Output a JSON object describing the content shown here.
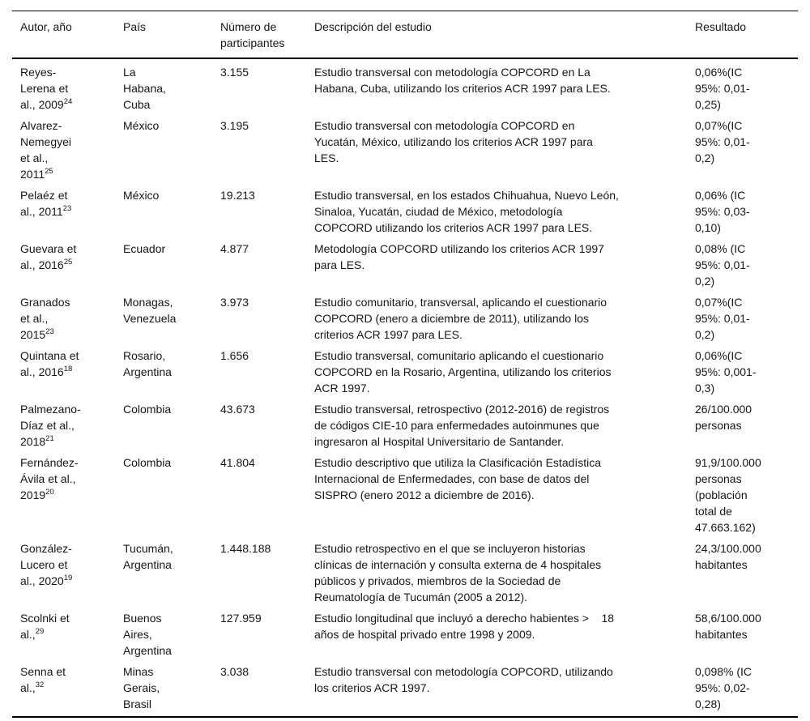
{
  "page": {
    "background_color": "#ffffff",
    "text_color": "#161616",
    "rule_color": "#000000"
  },
  "table": {
    "columns": [
      {
        "label": "Autor, año"
      },
      {
        "label": "País"
      },
      {
        "label": "Número de\nparticipantes"
      },
      {
        "label": "Descripción del estudio"
      },
      {
        "label": "Resultado"
      }
    ],
    "rows": [
      {
        "author": "Reyes-\nLerena et\nal., 2009",
        "author_ref": "24",
        "country": "La\nHabana,\nCuba",
        "participants": "3.155",
        "description": "Estudio transversal con metodología COPCORD en La\nHabana, Cuba, utilizando los criterios ACR 1997 para LES.",
        "result": "0,06%(IC\n95%: 0,01-\n0,25)"
      },
      {
        "author": "Alvarez-\nNemegyei\net al.,\n2011",
        "author_ref": "25",
        "country": "México",
        "participants": "3.195",
        "description": "Estudio transversal con metodología COPCORD en\nYucatán, México, utilizando los criterios ACR 1997 para\nLES.",
        "result": "0,07%(IC\n95%: 0,01-\n0,2)"
      },
      {
        "author": "Pelaéz et\nal., 2011",
        "author_ref": "23",
        "country": "México",
        "participants": "19.213",
        "description": "Estudio transversal, en los estados Chihuahua, Nuevo León,\nSinaloa, Yucatán, ciudad de México, metodología\nCOPCORD utilizando los criterios ACR 1997 para LES.",
        "result": "0,06% (IC\n95%: 0,03-\n0,10)"
      },
      {
        "author": "Guevara et\nal., 2016",
        "author_ref": "25",
        "country": "Ecuador",
        "participants": "4.877",
        "description": "Metodología COPCORD utilizando los criterios ACR 1997\npara LES.",
        "result": "0,08% (IC\n95%: 0,01-\n0,2)"
      },
      {
        "author": "Granados\net al.,\n2015",
        "author_ref": "23",
        "country": "Monagas,\nVenezuela",
        "participants": "3.973",
        "description": "Estudio comunitario, transversal, aplicando el cuestionario\nCOPCORD (enero a diciembre de 2011), utilizando los\ncriterios ACR 1997 para LES.",
        "result": "0,07%(IC\n95%: 0,01-\n0,2)"
      },
      {
        "author": "Quintana et\nal., 2016",
        "author_ref": "18",
        "country": "Rosario,\nArgentina",
        "participants": "1.656",
        "description": "Estudio transversal, comunitario aplicando el cuestionario\nCOPCORD en la Rosario, Argentina, utilizando los criterios\nACR 1997.",
        "result": "0,06%(IC\n95%: 0,001-\n0,3)"
      },
      {
        "author": "Palmezano-\nDíaz et al.,\n2018",
        "author_ref": "21",
        "country": "Colombia",
        "participants": "43.673",
        "description": "Estudio transversal, retrospectivo (2012-2016) de registros\nde códigos CIE-10 para enfermedades autoinmunes que\ningresaron al Hospital Universitario de Santander.",
        "result": "26/100.000\npersonas"
      },
      {
        "author": "Fernández-\nÁvila et al.,\n2019",
        "author_ref": "20",
        "country": "Colombia",
        "participants": "41.804",
        "description": "Estudio descriptivo que utiliza la Clasificación Estadística\nInternacional de Enfermedades, con base de datos del\nSISPRO (enero 2012 a diciembre de 2016).",
        "result": "91,9/100.000\npersonas\n(población\ntotal de\n47.663.162)"
      },
      {
        "author": "González-\nLucero et\nal., 2020",
        "author_ref": "19",
        "country": "Tucumán,\nArgentina",
        "participants": "1.448.188",
        "description": "Estudio retrospectivo en el que se incluyeron historias\nclínicas de internación y consulta externa de 4 hospitales\npúblicos y privados, miembros de la Sociedad de\nReumatología de Tucumán (2005 a 2012).",
        "result": "24,3/100.000\nhabitantes"
      },
      {
        "author": "Scolnki et\nal.,",
        "author_ref": "29",
        "country": "Buenos\nAires,\nArgentina",
        "participants": "127.959",
        "description": "Estudio longitudinal que incluyó a derecho habientes >    18\naños de hospital privado entre 1998 y 2009.",
        "result": "58,6/100.000\nhabitantes"
      },
      {
        "author": "Senna et\nal.,",
        "author_ref": "32",
        "country": "Minas\nGerais,\nBrasil",
        "participants": "3.038",
        "description": "Estudio transversal con metodología COPCORD, utilizando\nlos criterios ACR 1997.",
        "result": "0,098% (IC\n95%: 0,02-\n0,28)"
      }
    ]
  }
}
